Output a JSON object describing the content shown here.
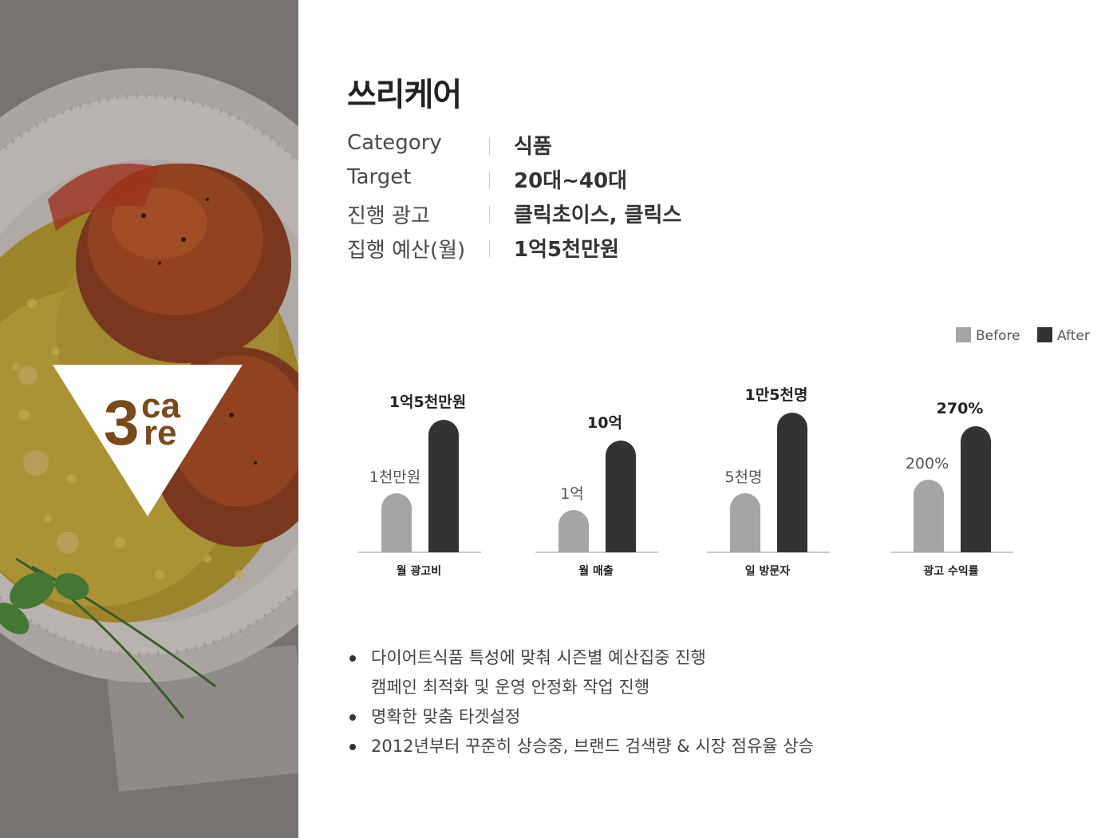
{
  "brand": {
    "name": "쓰리케어",
    "logo_text": "3care"
  },
  "info": [
    {
      "label": "Category",
      "value": "식품"
    },
    {
      "label": "Target",
      "value": "20대~40대"
    },
    {
      "label": "진행 광고",
      "value": "클릭초이스, 클릭스"
    },
    {
      "label": "집행 예산(월)",
      "value": "1억5천만원"
    }
  ],
  "legend": [
    {
      "label": "Before",
      "color": "#a5a5a5"
    },
    {
      "label": "After",
      "color": "#333333"
    }
  ],
  "chart_data": {
    "type": "bar",
    "series_names": [
      "Before",
      "After"
    ],
    "colors": {
      "before": "#a5a5a5",
      "after": "#333333"
    },
    "groups": [
      {
        "category": "월 광고비",
        "before": {
          "value": 1,
          "label": "1천만원"
        },
        "after": {
          "value": 15,
          "label": "1억5천만원"
        }
      },
      {
        "category": "월 매출",
        "before": {
          "value": 1,
          "label": "1억"
        },
        "after": {
          "value": 10,
          "label": "10억"
        }
      },
      {
        "category": "일 방문자",
        "before": {
          "value": 5,
          "label": "5천명"
        },
        "after": {
          "value": 15,
          "label": "1만5천명"
        }
      },
      {
        "category": "광고 수익률",
        "before": {
          "value": 200,
          "label": "200%"
        },
        "after": {
          "value": 270,
          "label": "270%"
        }
      }
    ],
    "level_after": [
      0.95,
      0.8,
      1.0,
      0.9
    ],
    "level_before": [
      0.42,
      0.3,
      0.42,
      0.52
    ],
    "grid": false,
    "legend_position": "top-right"
  },
  "notes": [
    {
      "text": "다이어트식품 특성에 맞춰 시즌별 예산집중 진행",
      "bullet": true
    },
    {
      "text": "캠페인 최적화 및 운영 안정화 작업 진행",
      "bullet": false
    },
    {
      "text": "명확한 맞춤 타겟설정",
      "bullet": true
    },
    {
      "text": "2012년부터 꾸준히 상승중, 브랜드 검색량 & 시장 점유율 상승",
      "bullet": true
    }
  ]
}
